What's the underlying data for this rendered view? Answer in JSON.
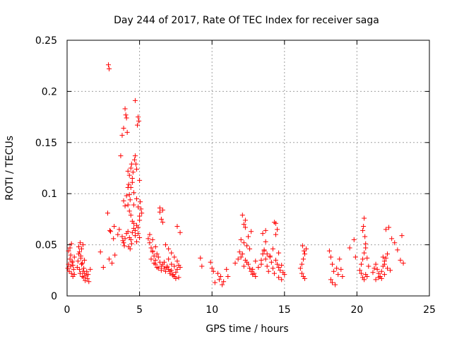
{
  "chart_data": {
    "type": "scatter",
    "title": "Day 244 of 2017, Rate Of TEC Index for receiver saga",
    "xlabel": "GPS time / hours",
    "ylabel": "ROTI / TECUs",
    "xlim": [
      0,
      25
    ],
    "ylim": [
      0,
      0.25
    ],
    "xticks": [
      0,
      5,
      10,
      15,
      20,
      25
    ],
    "yticks": [
      0,
      0.05,
      0.1,
      0.15,
      0.2,
      0.25
    ],
    "xtick_labels": [
      "0",
      "5",
      "10",
      "15",
      "20",
      "25"
    ],
    "ytick_labels": [
      "0",
      "0.05",
      "0.1",
      "0.15",
      "0.2",
      "0.25"
    ],
    "grid": true,
    "marker": "+",
    "color": "#ff0000",
    "series": [
      {
        "name": "ROTI",
        "x": [
          0.05,
          0.1,
          0.15,
          0.2,
          0.25,
          0.3,
          0.35,
          0.4,
          0.45,
          0.5,
          0.1,
          0.2,
          0.3,
          0.4,
          0.5,
          0.25,
          0.35,
          0.7,
          0.75,
          0.8,
          0.85,
          0.9,
          0.95,
          1.0,
          1.05,
          1.1,
          1.15,
          1.2,
          1.25,
          1.3,
          1.35,
          1.4,
          1.45,
          1.5,
          1.6,
          0.8,
          0.9,
          1.0,
          1.1,
          1.2,
          0.85,
          0.95,
          1.05,
          1.15,
          2.3,
          2.5,
          2.8,
          2.85,
          2.9,
          2.95,
          3.0,
          3.2,
          3.25,
          3.3,
          2.9,
          3.1,
          3.5,
          3.6,
          3.7,
          3.8,
          3.9,
          4.0,
          4.05,
          4.1,
          4.15,
          4.2,
          4.25,
          4.3,
          4.35,
          4.4,
          4.45,
          4.5,
          4.55,
          4.6,
          4.65,
          4.7,
          4.75,
          4.8,
          4.85,
          4.9,
          4.95,
          5.0,
          5.05,
          5.1,
          5.15,
          3.9,
          4.0,
          4.1,
          4.2,
          4.3,
          4.4,
          4.5,
          4.6,
          4.7,
          4.8,
          4.9,
          5.0,
          4.2,
          4.3,
          4.4,
          4.5,
          4.6,
          4.7,
          4.8,
          4.9,
          5.0,
          3.8,
          3.85,
          3.9,
          3.95,
          4.0,
          4.1,
          4.2,
          4.3,
          4.4,
          4.5,
          4.6,
          4.7,
          4.8,
          4.9,
          5.0,
          4.25,
          4.35,
          4.45,
          5.6,
          5.7,
          5.8,
          5.9,
          6.0,
          6.1,
          6.2,
          6.3,
          6.4,
          6.5,
          6.6,
          6.7,
          6.8,
          6.9,
          7.0,
          7.1,
          7.2,
          7.3,
          7.4,
          7.5,
          7.6,
          7.7,
          7.8,
          5.8,
          6.0,
          6.2,
          6.4,
          6.6,
          6.8,
          7.0,
          7.2,
          7.4,
          7.6,
          5.9,
          6.1,
          6.3,
          6.5,
          6.7,
          6.9,
          7.1,
          7.3,
          7.5,
          7.7,
          6.4,
          6.5,
          6.6,
          5.7,
          5.9,
          6.1,
          7.0,
          7.2,
          7.4,
          7.6,
          7.8,
          9.2,
          9.3,
          9.9,
          10.0,
          10.1,
          10.4,
          10.5,
          10.6,
          10.8,
          11.0,
          11.1,
          10.2,
          10.7,
          11.6,
          11.8,
          11.9,
          12.0,
          12.1,
          12.2,
          12.3,
          12.4,
          12.5,
          12.6,
          12.7,
          12.8,
          12.9,
          13.0,
          13.2,
          13.4,
          13.5,
          13.6,
          13.7,
          13.8,
          13.9,
          14.0,
          14.1,
          14.2,
          14.3,
          14.4,
          14.5,
          14.6,
          14.7,
          14.8,
          14.9,
          15.0,
          12.0,
          12.2,
          12.4,
          12.6,
          12.8,
          13.0,
          13.4,
          13.6,
          13.8,
          14.0,
          14.2,
          14.4,
          14.6,
          14.8,
          12.1,
          12.3,
          12.5,
          12.7,
          13.5,
          13.7,
          14.3,
          14.5,
          12.2,
          12.3,
          13.7,
          14.4,
          14.6,
          16.1,
          16.2,
          16.3,
          16.4,
          16.5,
          16.2,
          16.3,
          16.4,
          16.25,
          16.35,
          18.1,
          18.2,
          18.3,
          18.4,
          18.6,
          18.7,
          18.8,
          19.0,
          18.2,
          18.3,
          18.5,
          18.9,
          19.8,
          19.9,
          19.5,
          20.2,
          20.3,
          20.4,
          20.5,
          20.6,
          20.7,
          20.8,
          20.3,
          20.4,
          20.5,
          20.6,
          20.7,
          20.4,
          20.5,
          20.6,
          20.45,
          20.55,
          21.1,
          21.2,
          21.3,
          21.4,
          21.5,
          21.6,
          21.7,
          21.8,
          21.9,
          22.0,
          22.1,
          21.3,
          21.5,
          21.7,
          21.9,
          22.0,
          22.2,
          22.4,
          22.6,
          22.8,
          23.0,
          23.2,
          21.8,
          21.9,
          22.1,
          23.1,
          22.3
        ],
        "y": [
          0.027,
          0.031,
          0.024,
          0.036,
          0.029,
          0.022,
          0.034,
          0.019,
          0.026,
          0.038,
          0.044,
          0.047,
          0.051,
          0.03,
          0.021,
          0.04,
          0.033,
          0.028,
          0.034,
          0.041,
          0.026,
          0.022,
          0.037,
          0.031,
          0.019,
          0.024,
          0.018,
          0.022,
          0.015,
          0.02,
          0.024,
          0.017,
          0.021,
          0.014,
          0.026,
          0.048,
          0.052,
          0.046,
          0.05,
          0.035,
          0.043,
          0.039,
          0.032,
          0.027,
          0.043,
          0.028,
          0.081,
          0.226,
          0.222,
          0.064,
          0.063,
          0.056,
          0.068,
          0.04,
          0.036,
          0.032,
          0.06,
          0.065,
          0.137,
          0.157,
          0.164,
          0.183,
          0.177,
          0.174,
          0.16,
          0.122,
          0.109,
          0.099,
          0.094,
          0.106,
          0.129,
          0.111,
          0.121,
          0.089,
          0.133,
          0.137,
          0.129,
          0.124,
          0.167,
          0.175,
          0.171,
          0.113,
          0.092,
          0.085,
          0.081,
          0.093,
          0.088,
          0.098,
          0.089,
          0.083,
          0.079,
          0.073,
          0.071,
          0.064,
          0.069,
          0.061,
          0.057,
          0.106,
          0.118,
          0.125,
          0.115,
          0.101,
          0.191,
          0.095,
          0.087,
          0.078,
          0.058,
          0.054,
          0.052,
          0.049,
          0.056,
          0.061,
          0.063,
          0.057,
          0.055,
          0.062,
          0.066,
          0.059,
          0.053,
          0.067,
          0.074,
          0.048,
          0.046,
          0.051,
          0.056,
          0.052,
          0.047,
          0.043,
          0.039,
          0.035,
          0.041,
          0.038,
          0.033,
          0.029,
          0.031,
          0.027,
          0.024,
          0.028,
          0.026,
          0.022,
          0.025,
          0.021,
          0.019,
          0.023,
          0.026,
          0.03,
          0.028,
          0.036,
          0.032,
          0.028,
          0.082,
          0.084,
          0.05,
          0.046,
          0.042,
          0.038,
          0.034,
          0.044,
          0.031,
          0.027,
          0.025,
          0.033,
          0.029,
          0.024,
          0.02,
          0.017,
          0.018,
          0.086,
          0.075,
          0.072,
          0.06,
          0.055,
          0.048,
          0.036,
          0.031,
          0.029,
          0.068,
          0.062,
          0.037,
          0.029,
          0.033,
          0.027,
          0.024,
          0.022,
          0.016,
          0.019,
          0.014,
          0.026,
          0.019,
          0.013,
          0.011,
          0.032,
          0.036,
          0.043,
          0.038,
          0.041,
          0.029,
          0.035,
          0.033,
          0.031,
          0.027,
          0.024,
          0.026,
          0.022,
          0.034,
          0.028,
          0.031,
          0.041,
          0.045,
          0.036,
          0.029,
          0.024,
          0.038,
          0.033,
          0.027,
          0.022,
          0.035,
          0.031,
          0.028,
          0.025,
          0.03,
          0.023,
          0.021,
          0.055,
          0.052,
          0.049,
          0.046,
          0.021,
          0.019,
          0.035,
          0.044,
          0.041,
          0.039,
          0.046,
          0.06,
          0.018,
          0.016,
          0.079,
          0.074,
          0.058,
          0.063,
          0.061,
          0.053,
          0.072,
          0.065,
          0.07,
          0.067,
          0.064,
          0.071,
          0.042,
          0.027,
          0.031,
          0.036,
          0.041,
          0.046,
          0.022,
          0.019,
          0.017,
          0.049,
          0.044,
          0.044,
          0.038,
          0.031,
          0.024,
          0.027,
          0.021,
          0.036,
          0.019,
          0.016,
          0.013,
          0.011,
          0.026,
          0.055,
          0.038,
          0.047,
          0.025,
          0.031,
          0.036,
          0.042,
          0.047,
          0.037,
          0.029,
          0.022,
          0.018,
          0.016,
          0.021,
          0.019,
          0.064,
          0.076,
          0.051,
          0.068,
          0.058,
          0.023,
          0.027,
          0.031,
          0.026,
          0.022,
          0.019,
          0.024,
          0.029,
          0.034,
          0.037,
          0.041,
          0.016,
          0.018,
          0.017,
          0.021,
          0.065,
          0.067,
          0.056,
          0.052,
          0.045,
          0.035,
          0.032,
          0.038,
          0.031,
          0.027,
          0.059,
          0.025
        ]
      }
    ]
  }
}
